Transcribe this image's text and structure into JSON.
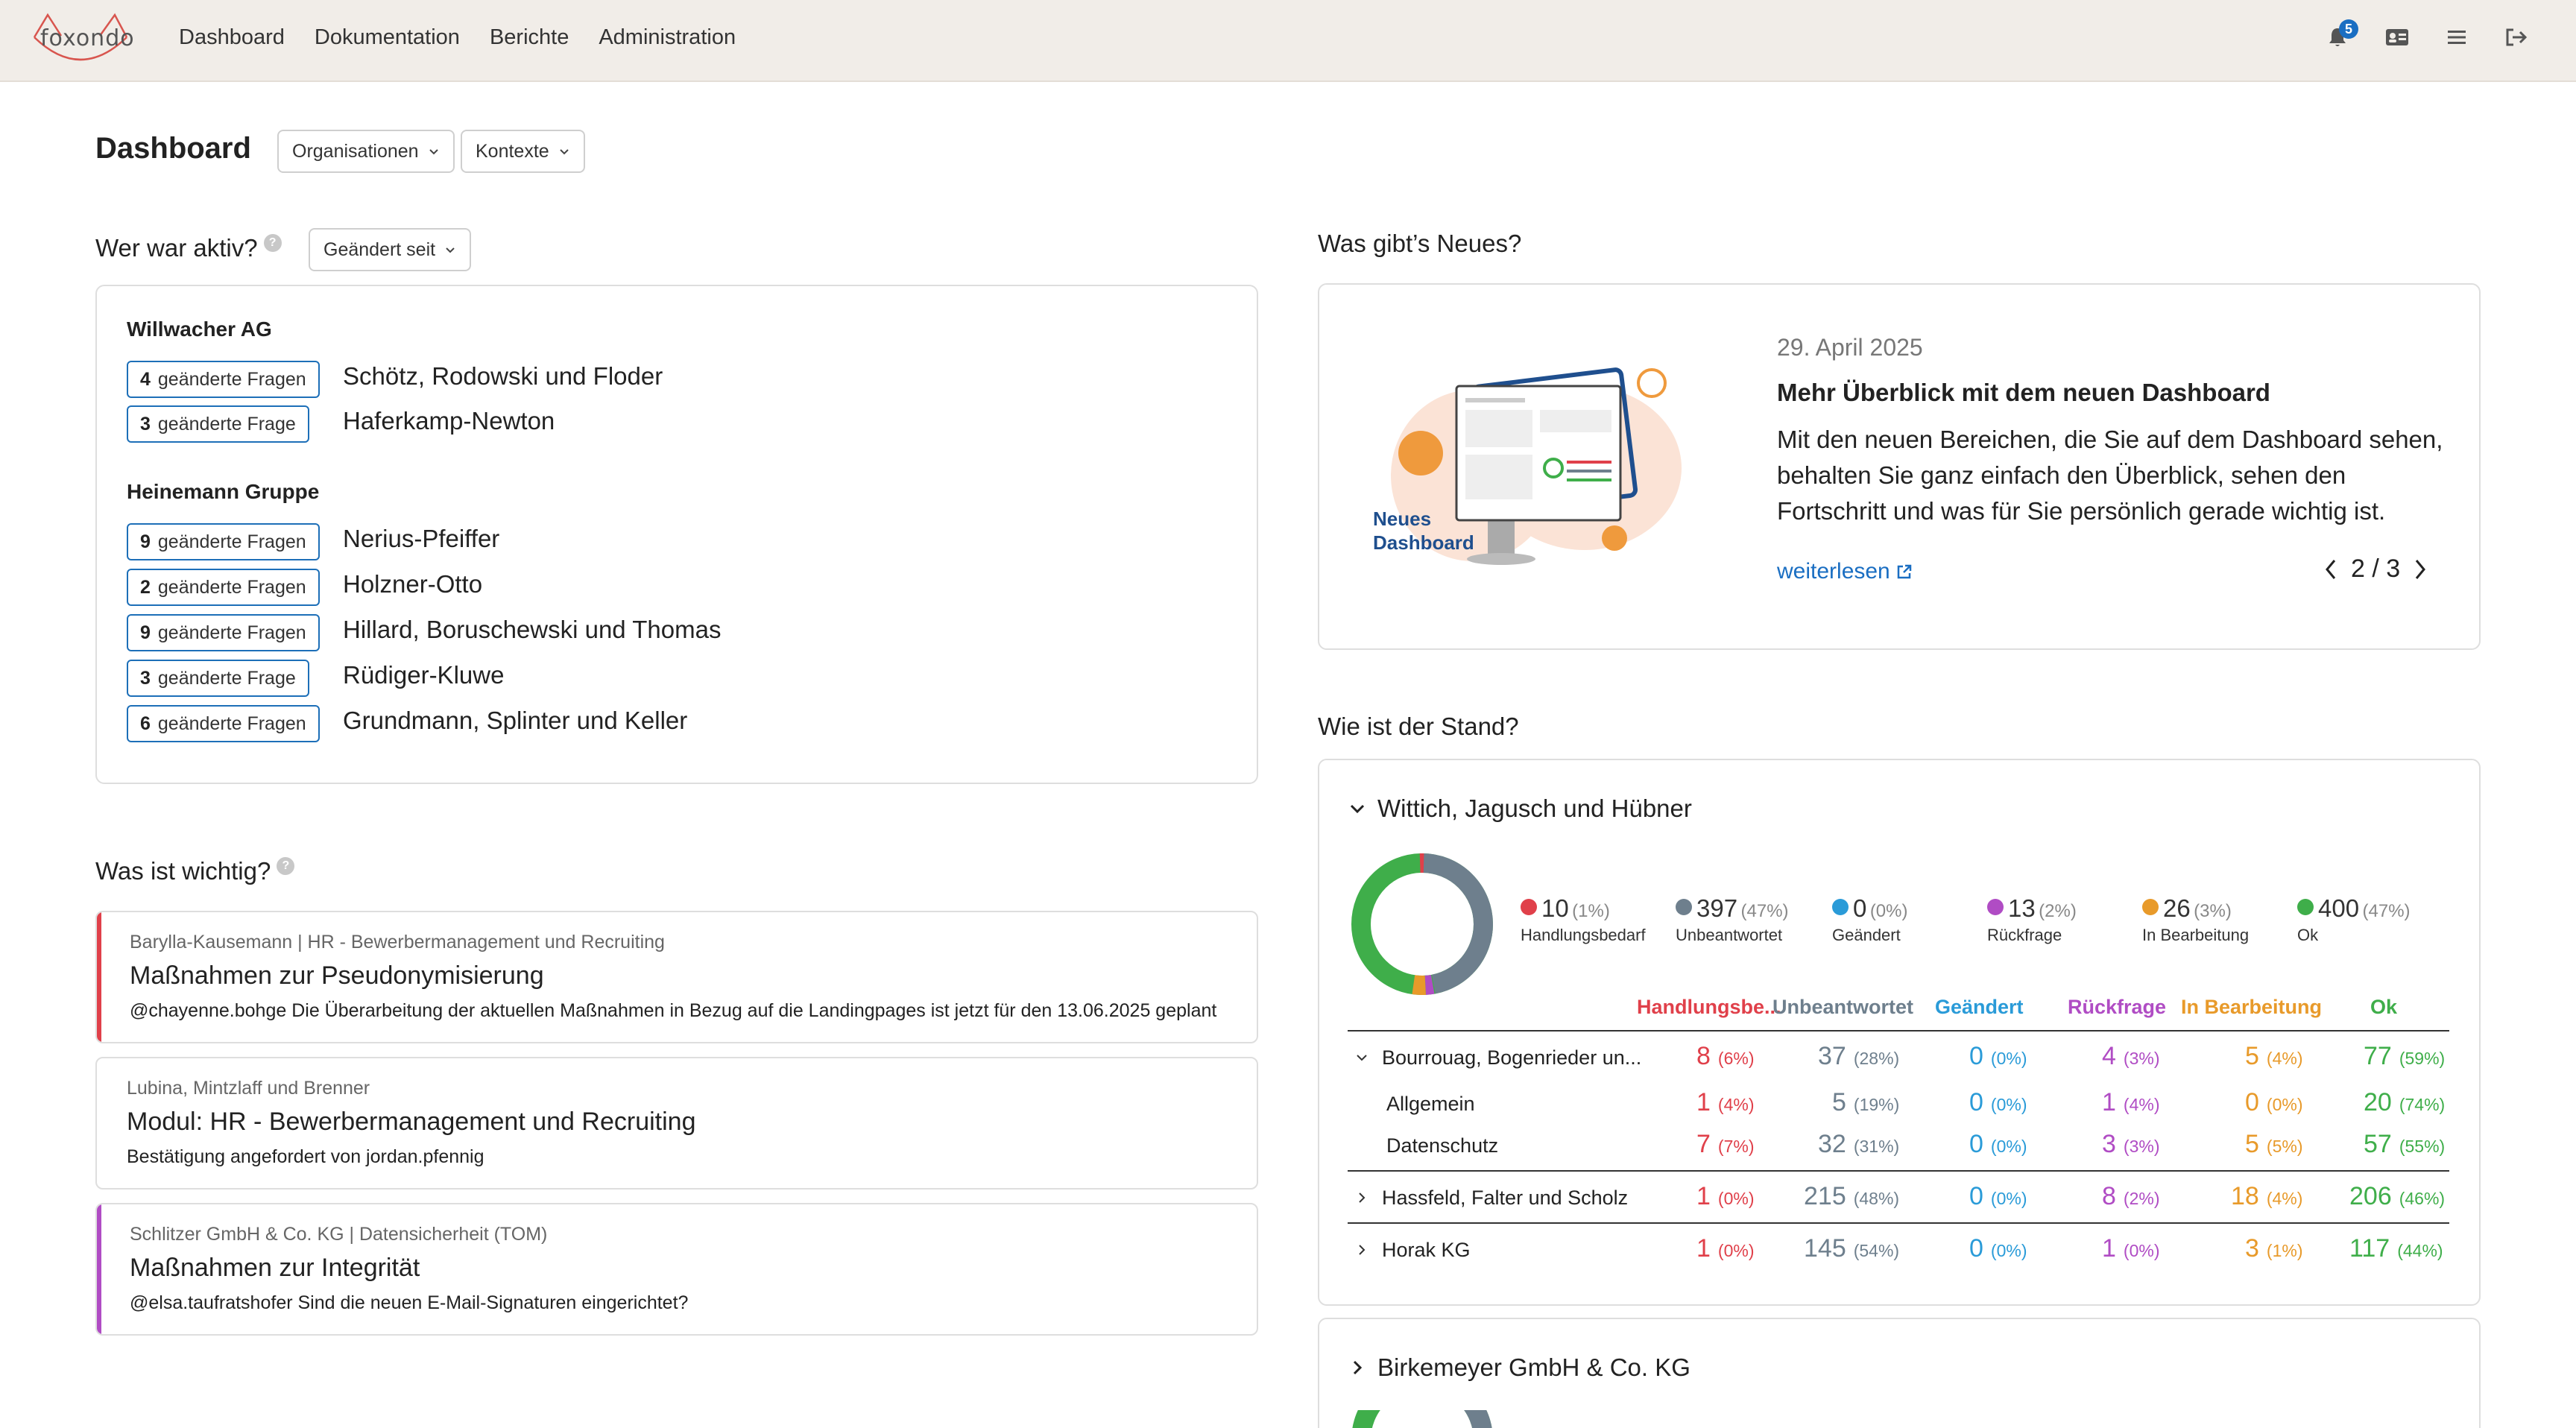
{
  "app": {
    "logo_text": "foxondo",
    "nav": [
      "Dashboard",
      "Dokumentation",
      "Berichte",
      "Administration"
    ],
    "notifications_count": "5"
  },
  "header": {
    "title": "Dashboard",
    "filter_org": "Organisationen",
    "filter_ctx": "Kontexte"
  },
  "active": {
    "title": "Wer war aktiv?",
    "filter": "Geändert seit",
    "groups": [
      {
        "name": "Willwacher AG",
        "rows": [
          {
            "count": "4",
            "label": "geänderte Fragen",
            "name": "Schötz, Rodowski und Floder"
          },
          {
            "count": "3",
            "label": "geänderte Frage",
            "name": "Haferkamp-Newton"
          }
        ]
      },
      {
        "name": "Heinemann Gruppe",
        "rows": [
          {
            "count": "9",
            "label": "geänderte Fragen",
            "name": "Nerius-Pfeiffer"
          },
          {
            "count": "2",
            "label": "geänderte Fragen",
            "name": "Holzner-Otto"
          },
          {
            "count": "9",
            "label": "geänderte Fragen",
            "name": "Hillard, Boruschewski und Thomas"
          },
          {
            "count": "3",
            "label": "geänderte Frage",
            "name": "Rüdiger-Kluwe"
          },
          {
            "count": "6",
            "label": "geänderte Fragen",
            "name": "Grundmann, Splinter und Keller"
          }
        ]
      }
    ]
  },
  "important": {
    "title": "Was ist wichtig?",
    "items": [
      {
        "meta": "Barylla-Kausemann | HR - Bewerbermanagement und Recruiting",
        "title": "Maßnahmen zur Pseudonymisierung",
        "text": "@chayenne.bohge Die Überarbeitung der aktuellen Maßnahmen in Bezug auf die Landingpages ist jetzt für den 13.06.2025 geplant",
        "accent": "#e0404a"
      },
      {
        "meta": "Lubina, Mintzlaff und Brenner",
        "title": "Modul: HR - Bewerbermanagement und Recruiting",
        "text": "Bestätigung angefordert von jordan.pfennig",
        "accent": ""
      },
      {
        "meta": "Schlitzer GmbH & Co. KG | Datensicherheit (TOM)",
        "title": "Maßnahmen zur Integrität",
        "text": "@elsa.taufratshofer Sind die neuen E-Mail-Signaturen eingerichtet?",
        "accent": "#b04cc4"
      }
    ]
  },
  "news": {
    "title": "Was gibt’s Neues?",
    "date": "29. April 2025",
    "headline": "Mehr Überblick mit dem neuen Dashboard",
    "text": "Mit den neuen Bereichen, die Sie auf dem Dashboard sehen, behalten Sie ganz einfach den Überblick, sehen den Fortschritt und was für Sie persönlich gerade wichtig ist.",
    "link": "weiterlesen",
    "pager": "2 / 3",
    "image_caption_1": "Neues",
    "image_caption_2": "Dashboard"
  },
  "status": {
    "title": "Wie ist der Stand?",
    "group1": "Wittich, Jagusch und Hübner",
    "group2": "Birkemeyer GmbH & Co. KG",
    "legend": [
      {
        "value": "10",
        "pct": "(1%)",
        "label": "Handlungsbedarf",
        "color": "#e0404a"
      },
      {
        "value": "397",
        "pct": "(47%)",
        "label": "Unbeantwortet",
        "color": "#6e7f8d"
      },
      {
        "value": "0",
        "pct": "(0%)",
        "label": "Geändert",
        "color": "#2a9bd8"
      },
      {
        "value": "13",
        "pct": "(2%)",
        "label": "Rückfrage",
        "color": "#b04cc4"
      },
      {
        "value": "26",
        "pct": "(3%)",
        "label": "In Bearbeitung",
        "color": "#e89a2a"
      },
      {
        "value": "400",
        "pct": "(47%)",
        "label": "Ok",
        "color": "#3fae4a"
      }
    ],
    "columns": [
      "Handlungsbe...",
      "Unbeantwortet",
      "Geändert",
      "Rückfrage",
      "In Bearbeitung",
      "Ok"
    ],
    "rows": [
      {
        "name": "Bourrouag, Bogenrieder un...",
        "expanded": true,
        "v": [
          "8",
          "37",
          "0",
          "4",
          "5",
          "77"
        ],
        "p": [
          "(6%)",
          "(28%)",
          "(0%)",
          "(3%)",
          "(4%)",
          "(59%)"
        ]
      },
      {
        "name": "Allgemein",
        "sub": true,
        "v": [
          "1",
          "5",
          "0",
          "1",
          "0",
          "20"
        ],
        "p": [
          "(4%)",
          "(19%)",
          "(0%)",
          "(4%)",
          "(0%)",
          "(74%)"
        ]
      },
      {
        "name": "Datenschutz",
        "sub": true,
        "v": [
          "7",
          "32",
          "0",
          "3",
          "5",
          "57"
        ],
        "p": [
          "(7%)",
          "(31%)",
          "(0%)",
          "(3%)",
          "(5%)",
          "(55%)"
        ]
      },
      {
        "name": "Hassfeld, Falter und Scholz",
        "v": [
          "1",
          "215",
          "0",
          "8",
          "18",
          "206"
        ],
        "p": [
          "(0%)",
          "(48%)",
          "(0%)",
          "(2%)",
          "(4%)",
          "(46%)"
        ]
      },
      {
        "name": "Horak KG",
        "v": [
          "1",
          "145",
          "0",
          "1",
          "3",
          "117"
        ],
        "p": [
          "(0%)",
          "(54%)",
          "(0%)",
          "(0%)",
          "(1%)",
          "(44%)"
        ]
      }
    ]
  }
}
